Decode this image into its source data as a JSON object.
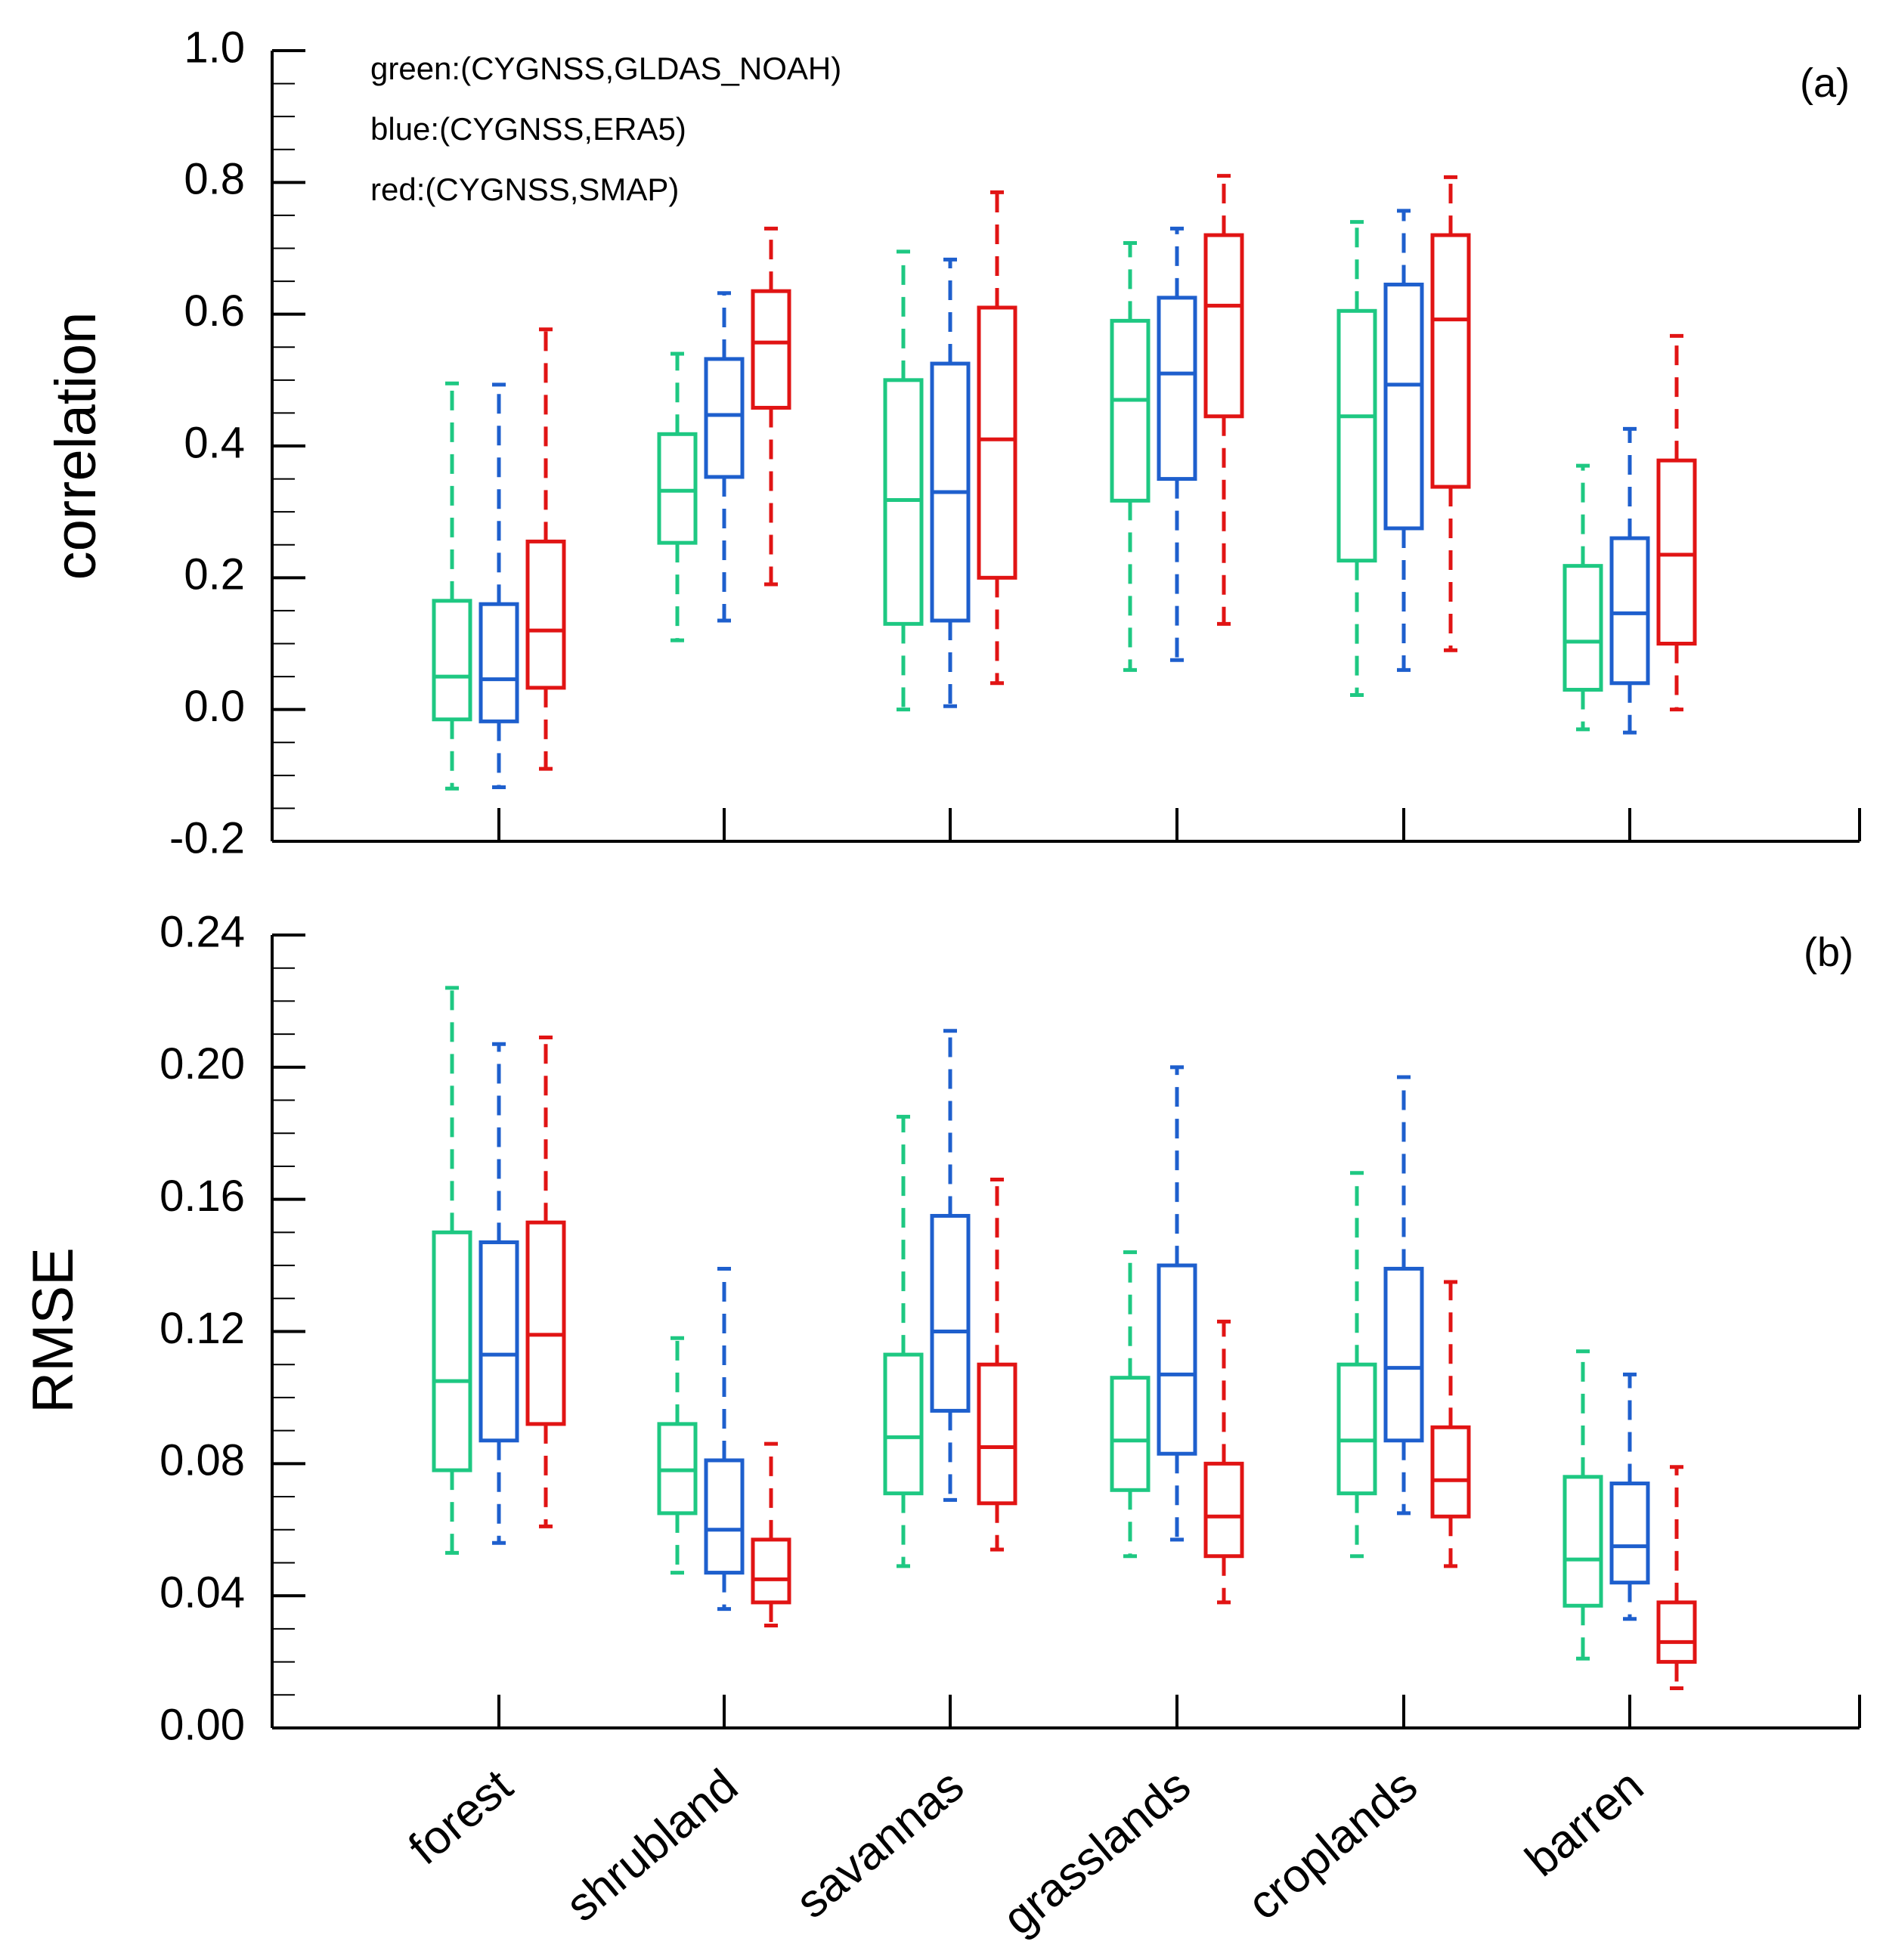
{
  "chart_data": [
    {
      "type": "box",
      "panel_label": "(a)",
      "ylabel": "correlation",
      "ylim": [
        -0.2,
        1.0
      ],
      "yticks": [
        "-0.2",
        "0.0",
        "0.2",
        "0.4",
        "0.6",
        "0.8",
        "1.0"
      ],
      "ytick_values": [
        -0.2,
        0.0,
        0.2,
        0.4,
        0.6,
        0.8,
        1.0
      ],
      "minor_step": 0.05,
      "legend": [
        {
          "text": "green:(CYGNSS,GLDAS_NOAH)"
        },
        {
          "text": "blue:(CYGNSS,ERA5)"
        },
        {
          "text": "red:(CYGNSS,SMAP)"
        }
      ],
      "categories": [
        "forest",
        "shrubland",
        "savannas",
        "grasslands",
        "croplands",
        "barren"
      ],
      "series": [
        {
          "name": "green",
          "color": "#1ec882",
          "boxes": [
            [
              -0.12,
              -0.015,
              0.05,
              0.165,
              0.495
            ],
            [
              0.105,
              0.253,
              0.332,
              0.418,
              0.54
            ],
            [
              0.0,
              0.13,
              0.318,
              0.5,
              0.695
            ],
            [
              0.06,
              0.317,
              0.47,
              0.59,
              0.708
            ],
            [
              0.022,
              0.226,
              0.445,
              0.605,
              0.74
            ],
            [
              -0.03,
              0.03,
              0.103,
              0.218,
              0.37
            ]
          ]
        },
        {
          "name": "blue",
          "color": "#1e5fcd",
          "boxes": [
            [
              -0.118,
              -0.018,
              0.046,
              0.16,
              0.493
            ],
            [
              0.135,
              0.353,
              0.447,
              0.532,
              0.632
            ],
            [
              0.005,
              0.135,
              0.33,
              0.525,
              0.683
            ],
            [
              0.075,
              0.35,
              0.51,
              0.625,
              0.73
            ],
            [
              0.06,
              0.275,
              0.493,
              0.645,
              0.757
            ],
            [
              -0.035,
              0.04,
              0.146,
              0.26,
              0.426
            ]
          ]
        },
        {
          "name": "red",
          "color": "#e11414",
          "boxes": [
            [
              -0.09,
              0.033,
              0.12,
              0.255,
              0.577
            ],
            [
              0.19,
              0.458,
              0.557,
              0.635,
              0.73
            ],
            [
              0.04,
              0.2,
              0.41,
              0.61,
              0.785
            ],
            [
              0.13,
              0.445,
              0.613,
              0.72,
              0.81
            ],
            [
              0.09,
              0.338,
              0.592,
              0.72,
              0.808
            ],
            [
              0.0,
              0.1,
              0.235,
              0.378,
              0.567
            ]
          ]
        }
      ]
    },
    {
      "type": "box",
      "panel_label": "(b)",
      "ylabel": "RMSE",
      "ylim": [
        0.0,
        0.24
      ],
      "yticks": [
        "0.00",
        "0.04",
        "0.08",
        "0.12",
        "0.16",
        "0.20",
        "0.24"
      ],
      "ytick_values": [
        0.0,
        0.04,
        0.08,
        0.12,
        0.16,
        0.2,
        0.24
      ],
      "minor_step": 0.01,
      "categories": [
        "forest",
        "shrubland",
        "savannas",
        "grasslands",
        "croplands",
        "barren"
      ],
      "series": [
        {
          "name": "green",
          "color": "#1ec882",
          "boxes": [
            [
              0.053,
              0.078,
              0.105,
              0.15,
              0.224
            ],
            [
              0.047,
              0.065,
              0.078,
              0.092,
              0.118
            ],
            [
              0.049,
              0.071,
              0.088,
              0.113,
              0.185
            ],
            [
              0.052,
              0.072,
              0.087,
              0.106,
              0.144
            ],
            [
              0.052,
              0.071,
              0.087,
              0.11,
              0.168
            ],
            [
              0.021,
              0.037,
              0.051,
              0.076,
              0.114
            ]
          ]
        },
        {
          "name": "blue",
          "color": "#1e5fcd",
          "boxes": [
            [
              0.056,
              0.087,
              0.113,
              0.147,
              0.207
            ],
            [
              0.036,
              0.047,
              0.06,
              0.081,
              0.139
            ],
            [
              0.069,
              0.096,
              0.12,
              0.155,
              0.211
            ],
            [
              0.057,
              0.083,
              0.107,
              0.14,
              0.2
            ],
            [
              0.065,
              0.087,
              0.109,
              0.139,
              0.197
            ],
            [
              0.033,
              0.044,
              0.055,
              0.074,
              0.107
            ]
          ]
        },
        {
          "name": "red",
          "color": "#e11414",
          "boxes": [
            [
              0.061,
              0.092,
              0.119,
              0.153,
              0.209
            ],
            [
              0.031,
              0.038,
              0.045,
              0.057,
              0.086
            ],
            [
              0.054,
              0.068,
              0.085,
              0.11,
              0.166
            ],
            [
              0.038,
              0.052,
              0.064,
              0.08,
              0.123
            ],
            [
              0.049,
              0.064,
              0.075,
              0.091,
              0.135
            ],
            [
              0.012,
              0.02,
              0.026,
              0.038,
              0.079
            ]
          ]
        }
      ]
    }
  ]
}
